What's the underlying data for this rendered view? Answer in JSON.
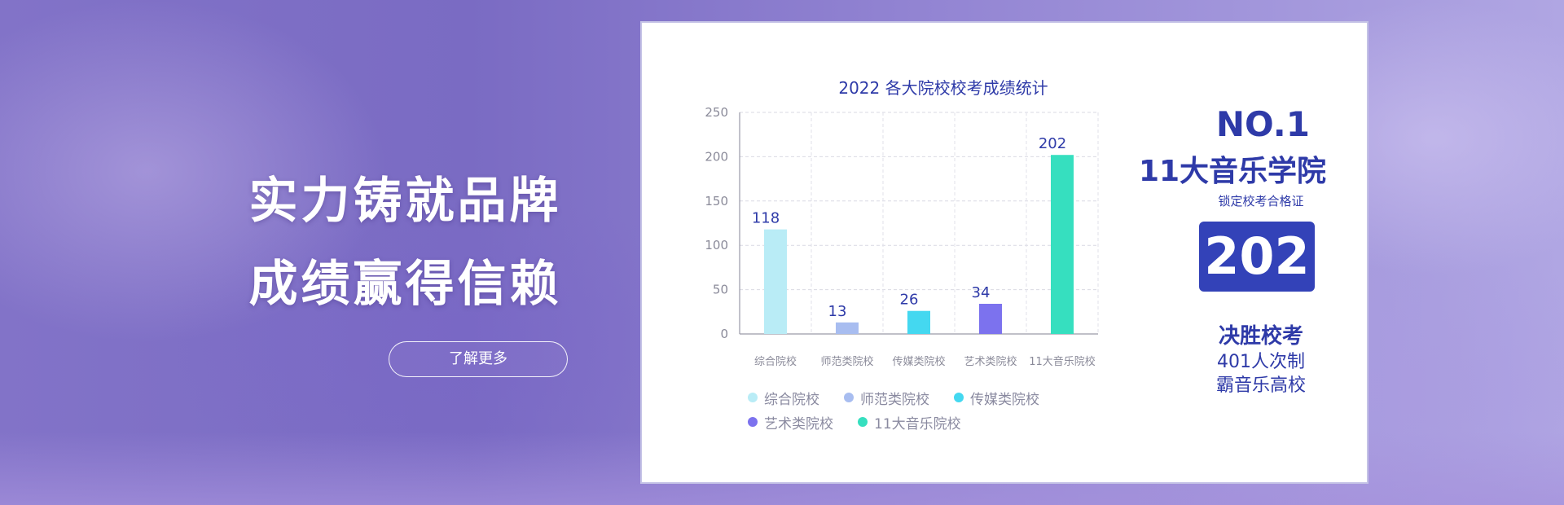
{
  "hero": {
    "slogan_line1": "实力铸就品牌",
    "slogan_line2": "成绩赢得信赖",
    "learn_more_label": "了解更多"
  },
  "stats": {
    "rank": "NO.1",
    "college": "11大音乐学院",
    "locked_label": "锁定校考合格证",
    "big_number": "202",
    "win_label": "决胜校考",
    "count_label": "401人次制",
    "dominate_label": "霸音乐高校"
  },
  "chart_data": {
    "type": "bar",
    "title": "2022 各大院校校考成绩统计",
    "categories": [
      "综合院校",
      "师范类院校",
      "传媒类院校",
      "艺术类院校",
      "11大音乐院校"
    ],
    "values": [
      118,
      13,
      26,
      34,
      202
    ],
    "colors": [
      "#b9ecf6",
      "#a8bdf0",
      "#44d8f0",
      "#7c72ee",
      "#36dfbf"
    ],
    "ylim": [
      0,
      250
    ],
    "yticks": [
      0,
      50,
      100,
      150,
      200,
      250
    ],
    "grid": true,
    "legend_position": "bottom"
  }
}
